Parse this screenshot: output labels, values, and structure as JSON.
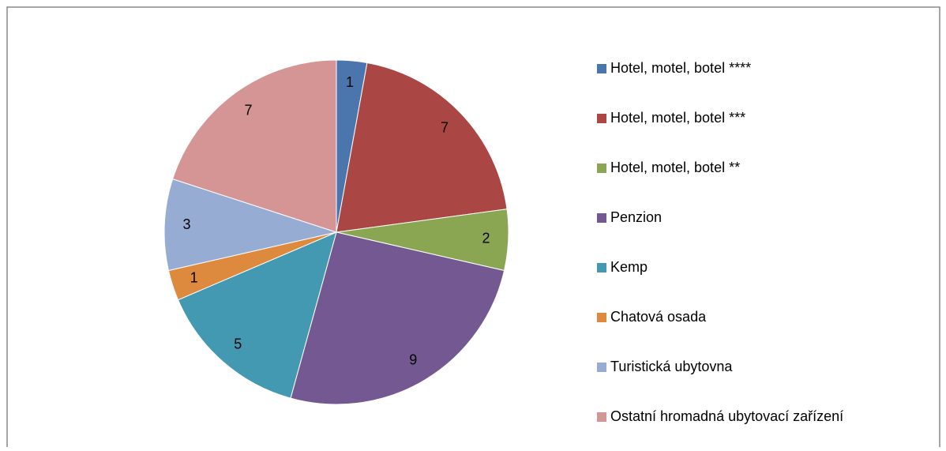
{
  "chart_data": {
    "type": "pie",
    "categories": [
      "Hotel, motel, botel ****",
      "Hotel, motel, botel ***",
      "Hotel, motel, botel **",
      "Penzion",
      "Kemp",
      "Chatová osada",
      "Turistická ubytovna",
      "Ostatní hromadná ubytovací zařízení"
    ],
    "values": [
      1,
      7,
      2,
      9,
      5,
      1,
      3,
      7
    ],
    "colors": [
      "#4a76ad",
      "#aa4644",
      "#8ba653",
      "#735892",
      "#4399b1",
      "#dd8a3e",
      "#97acd3",
      "#d49594"
    ],
    "legend": "right"
  }
}
